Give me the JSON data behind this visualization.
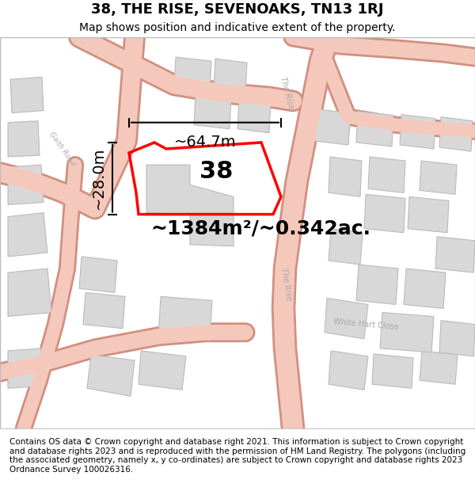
{
  "title": "38, THE RISE, SEVENOAKS, TN13 1RJ",
  "subtitle": "Map shows position and indicative extent of the property.",
  "footer": "Contains OS data © Crown copyright and database right 2021. This information is subject to Crown copyright and database rights 2023 and is reproduced with the permission of HM Land Registry. The polygons (including the associated geometry, namely x, y co-ordinates) are subject to Crown copyright and database rights 2023 Ordnance Survey 100026316.",
  "area_label": "~1384m²/~0.342ac.",
  "width_label": "~64.7m",
  "height_label": "~28.0m",
  "plot_number": "38",
  "bg_color": "#f5f0ee",
  "map_bg": "#f7f3f1",
  "road_color": "#f0b0a0",
  "road_outline": "#e08070",
  "building_color": "#d8d8d8",
  "building_edge": "#bbbbbb",
  "plot_color": "#ff0000",
  "plot_fill": "none",
  "road_label_color": "#aaaaaa",
  "title_fontsize": 13,
  "subtitle_fontsize": 10,
  "footer_fontsize": 7.5,
  "label_fontsize": 14,
  "plot_number_fontsize": 22,
  "area_label_fontsize": 18,
  "map_border_color": "#cccccc"
}
